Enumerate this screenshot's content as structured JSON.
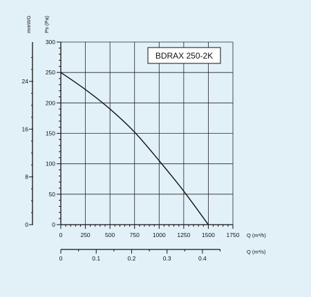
{
  "chart_data": {
    "type": "line",
    "title": "BDRAX 250-2K",
    "ylabel": "Ps (Pa)",
    "ylabel_secondary": "mmWG",
    "xlabel": "Q (m³/h)",
    "xlabel_secondary": "Q (m³/s)",
    "xlim": [
      0,
      1750
    ],
    "ylim": [
      0,
      300
    ],
    "x_ticks": [
      "0",
      "250",
      "500",
      "750",
      "1000",
      "1250",
      "1500",
      "1750"
    ],
    "y_ticks": [
      "0",
      "50",
      "100",
      "150",
      "200",
      "250",
      "300"
    ],
    "y2_ticks": [
      "0",
      "8",
      "16",
      "24"
    ],
    "x2_ticks": [
      "0",
      "0.1",
      "0.2",
      "0.3",
      "0.4"
    ],
    "grid": true,
    "series": [
      {
        "x": [
          0,
          250,
          500,
          750,
          1000,
          1250,
          1500
        ],
        "y": [
          250,
          222,
          190,
          152,
          105,
          55,
          0
        ]
      }
    ]
  }
}
